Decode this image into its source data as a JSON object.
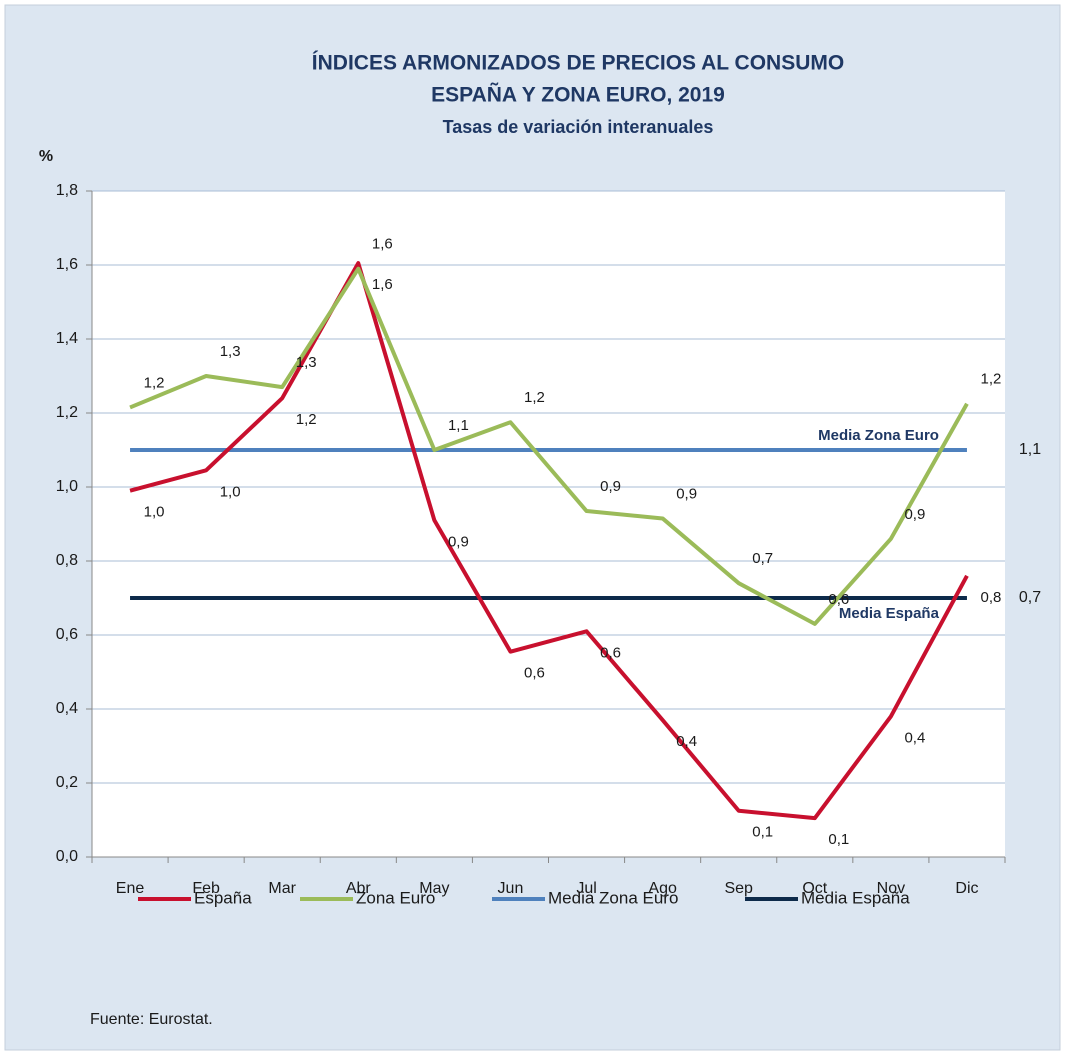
{
  "chart_data": {
    "type": "line",
    "title": [
      "ÍNDICES ARMONIZADOS DE PRECIOS AL CONSUMO",
      "ESPAÑA Y ZONA EURO, 2019"
    ],
    "subtitle": "Tasas de variación interanuales",
    "y_label": "%",
    "source": "Fuente:  Eurostat.",
    "categories": [
      "Ene",
      "Feb",
      "Mar",
      "Abr",
      "May",
      "Jun",
      "Jul",
      "Ago",
      "Sep",
      "Oct",
      "Nov",
      "Dic"
    ],
    "series": [
      {
        "name": "España",
        "color": "#c8102e",
        "values": [
          0.99,
          1.045,
          1.24,
          1.605,
          0.91,
          0.555,
          0.61,
          0.37,
          0.125,
          0.105,
          0.38,
          0.76
        ],
        "value_labels": [
          "1,0",
          "1,0",
          "1,2",
          "1,6",
          "0,9",
          "0,6",
          "0,6",
          "0,4",
          "0,1",
          "0,1",
          "0,4",
          "0,8"
        ]
      },
      {
        "name": "Zona Euro",
        "color": "#9bbb59",
        "values": [
          1.215,
          1.3,
          1.27,
          1.59,
          1.1,
          1.175,
          0.935,
          0.915,
          0.74,
          0.63,
          0.86,
          1.225
        ],
        "value_labels": [
          "1,2",
          "1,3",
          "1,3",
          "1,6",
          "1,1",
          "1,2",
          "0,9",
          "0,9",
          "0,7",
          "0,6",
          "0,9",
          "1,2"
        ]
      }
    ],
    "reference_lines": [
      {
        "name": "Media Zona Euro",
        "color": "#4f81bd",
        "value": 1.1,
        "value_label": "1,1"
      },
      {
        "name": "Media España",
        "color": "#0d2a4a",
        "value": 0.7,
        "value_label": "0,7"
      }
    ],
    "ylim": [
      0,
      1.8
    ],
    "yticks": [
      {
        "value": 0,
        "label": "0,0"
      },
      {
        "value": 0.2,
        "label": "0,2"
      },
      {
        "value": 0.4,
        "label": "0,4"
      },
      {
        "value": 0.6,
        "label": "0,6"
      },
      {
        "value": 0.8,
        "label": "0,8"
      },
      {
        "value": 1.0,
        "label": "1,0"
      },
      {
        "value": 1.2,
        "label": "1,2"
      },
      {
        "value": 1.4,
        "label": "1,4"
      },
      {
        "value": 1.6,
        "label": "1,6"
      },
      {
        "value": 1.8,
        "label": "1,8"
      }
    ],
    "grid": true,
    "legend": "bottom"
  }
}
